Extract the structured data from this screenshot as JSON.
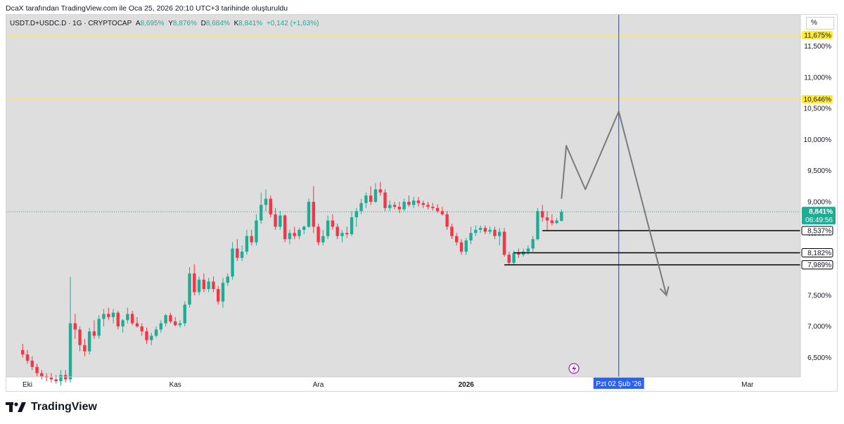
{
  "caption": "DcaX tarafından TradingView.com ile Oca 25, 2026 20:10 UTC+3 tarihinde oluşturuldu",
  "legend": {
    "symbol": "USDT.D+USDC.D · 1G · CRYPTOCAP",
    "o_label": "A",
    "o_value": "8,695%",
    "h_label": "Y",
    "h_value": "8,876%",
    "l_label": "D",
    "l_value": "8,684%",
    "c_label": "K",
    "c_value": "8,841%",
    "change": "+0,142 (+1,63%)"
  },
  "scale_mode": "%",
  "brand": "TradingView",
  "colors": {
    "up": "#22ab94",
    "down": "#f23645",
    "highlight": "#ffeb3b",
    "vline": "#2962ff",
    "price_badge": "#22ab94"
  },
  "chart_data": {
    "type": "candlestick",
    "ylim": [
      6.2,
      11.8
    ],
    "y_ticks": [
      "6,500%",
      "7,000%",
      "7,500%",
      "8,000%",
      "8,500%",
      "9,000%",
      "9,500%",
      "10,000%",
      "10,500%",
      "11,000%",
      "11,500%"
    ],
    "y_tick_values": [
      6.5,
      7.0,
      7.5,
      8.0,
      8.5,
      9.0,
      9.5,
      10.0,
      10.5,
      11.0,
      11.5
    ],
    "x_labels": [
      {
        "label": "Eki",
        "date": "2025-10-01"
      },
      {
        "label": "Kas",
        "date": "2025-11-01"
      },
      {
        "label": "Ara",
        "date": "2025-12-01"
      },
      {
        "label": "2026",
        "date": "2026-01-01"
      },
      {
        "label": "Mar",
        "date": "2026-03-01"
      }
    ],
    "candles": [
      {
        "d": "2025-09-30",
        "o": 6.62,
        "h": 6.72,
        "l": 6.5,
        "c": 6.55
      },
      {
        "d": "2025-10-01",
        "o": 6.55,
        "h": 6.62,
        "l": 6.4,
        "c": 6.45
      },
      {
        "d": "2025-10-02",
        "o": 6.45,
        "h": 6.52,
        "l": 6.3,
        "c": 6.35
      },
      {
        "d": "2025-10-03",
        "o": 6.35,
        "h": 6.4,
        "l": 6.2,
        "c": 6.25
      },
      {
        "d": "2025-10-04",
        "o": 6.25,
        "h": 6.3,
        "l": 6.15,
        "c": 6.2
      },
      {
        "d": "2025-10-05",
        "o": 6.2,
        "h": 6.25,
        "l": 6.12,
        "c": 6.18
      },
      {
        "d": "2025-10-06",
        "o": 6.18,
        "h": 6.25,
        "l": 6.1,
        "c": 6.15
      },
      {
        "d": "2025-10-07",
        "o": 6.15,
        "h": 6.22,
        "l": 6.08,
        "c": 6.12
      },
      {
        "d": "2025-10-08",
        "o": 6.12,
        "h": 6.3,
        "l": 6.05,
        "c": 6.22
      },
      {
        "d": "2025-10-09",
        "o": 6.22,
        "h": 6.3,
        "l": 6.1,
        "c": 6.15
      },
      {
        "d": "2025-10-10",
        "o": 6.15,
        "h": 7.8,
        "l": 6.1,
        "c": 7.05
      },
      {
        "d": "2025-10-11",
        "o": 7.05,
        "h": 7.2,
        "l": 6.8,
        "c": 6.95
      },
      {
        "d": "2025-10-12",
        "o": 6.95,
        "h": 7.0,
        "l": 6.6,
        "c": 6.7
      },
      {
        "d": "2025-10-13",
        "o": 6.7,
        "h": 6.8,
        "l": 6.52,
        "c": 6.6
      },
      {
        "d": "2025-10-14",
        "o": 6.6,
        "h": 6.98,
        "l": 6.55,
        "c": 6.92
      },
      {
        "d": "2025-10-15",
        "o": 6.92,
        "h": 7.1,
        "l": 6.8,
        "c": 6.85
      },
      {
        "d": "2025-10-16",
        "o": 6.85,
        "h": 7.18,
        "l": 6.8,
        "c": 7.12
      },
      {
        "d": "2025-10-17",
        "o": 7.12,
        "h": 7.28,
        "l": 7.0,
        "c": 7.2
      },
      {
        "d": "2025-10-18",
        "o": 7.2,
        "h": 7.3,
        "l": 7.1,
        "c": 7.15
      },
      {
        "d": "2025-10-19",
        "o": 7.15,
        "h": 7.28,
        "l": 7.05,
        "c": 7.22
      },
      {
        "d": "2025-10-20",
        "o": 7.22,
        "h": 7.25,
        "l": 6.95,
        "c": 7.0
      },
      {
        "d": "2025-10-21",
        "o": 7.0,
        "h": 7.12,
        "l": 6.9,
        "c": 7.1
      },
      {
        "d": "2025-10-22",
        "o": 7.1,
        "h": 7.3,
        "l": 7.05,
        "c": 7.2
      },
      {
        "d": "2025-10-23",
        "o": 7.2,
        "h": 7.25,
        "l": 7.02,
        "c": 7.05
      },
      {
        "d": "2025-10-24",
        "o": 7.05,
        "h": 7.15,
        "l": 6.98,
        "c": 7.0
      },
      {
        "d": "2025-10-25",
        "o": 7.0,
        "h": 7.05,
        "l": 6.85,
        "c": 6.92
      },
      {
        "d": "2025-10-26",
        "o": 6.92,
        "h": 6.98,
        "l": 6.72,
        "c": 6.78
      },
      {
        "d": "2025-10-27",
        "o": 6.78,
        "h": 6.9,
        "l": 6.7,
        "c": 6.85
      },
      {
        "d": "2025-10-28",
        "o": 6.85,
        "h": 7.0,
        "l": 6.82,
        "c": 6.95
      },
      {
        "d": "2025-10-29",
        "o": 6.95,
        "h": 7.1,
        "l": 6.9,
        "c": 7.05
      },
      {
        "d": "2025-10-30",
        "o": 7.05,
        "h": 7.2,
        "l": 7.0,
        "c": 7.18
      },
      {
        "d": "2025-10-31",
        "o": 7.18,
        "h": 7.22,
        "l": 7.05,
        "c": 7.08
      },
      {
        "d": "2025-11-01",
        "o": 7.08,
        "h": 7.15,
        "l": 7.0,
        "c": 7.02
      },
      {
        "d": "2025-11-02",
        "o": 7.02,
        "h": 7.1,
        "l": 6.98,
        "c": 7.05
      },
      {
        "d": "2025-11-03",
        "o": 7.05,
        "h": 7.4,
        "l": 7.0,
        "c": 7.35
      },
      {
        "d": "2025-11-04",
        "o": 7.35,
        "h": 7.95,
        "l": 7.3,
        "c": 7.85
      },
      {
        "d": "2025-11-05",
        "o": 7.85,
        "h": 8.0,
        "l": 7.5,
        "c": 7.55
      },
      {
        "d": "2025-11-06",
        "o": 7.55,
        "h": 7.8,
        "l": 7.5,
        "c": 7.75
      },
      {
        "d": "2025-11-07",
        "o": 7.75,
        "h": 7.85,
        "l": 7.55,
        "c": 7.6
      },
      {
        "d": "2025-11-08",
        "o": 7.6,
        "h": 7.78,
        "l": 7.55,
        "c": 7.72
      },
      {
        "d": "2025-11-09",
        "o": 7.72,
        "h": 7.8,
        "l": 7.55,
        "c": 7.6
      },
      {
        "d": "2025-11-10",
        "o": 7.6,
        "h": 7.65,
        "l": 7.35,
        "c": 7.4
      },
      {
        "d": "2025-11-11",
        "o": 7.4,
        "h": 7.78,
        "l": 7.3,
        "c": 7.7
      },
      {
        "d": "2025-11-12",
        "o": 7.7,
        "h": 7.85,
        "l": 7.65,
        "c": 7.8
      },
      {
        "d": "2025-11-13",
        "o": 7.8,
        "h": 8.35,
        "l": 7.75,
        "c": 8.25
      },
      {
        "d": "2025-11-14",
        "o": 8.25,
        "h": 8.4,
        "l": 8.05,
        "c": 8.1
      },
      {
        "d": "2025-11-15",
        "o": 8.1,
        "h": 8.3,
        "l": 8.05,
        "c": 8.2
      },
      {
        "d": "2025-11-16",
        "o": 8.2,
        "h": 8.55,
        "l": 8.15,
        "c": 8.45
      },
      {
        "d": "2025-11-17",
        "o": 8.45,
        "h": 8.55,
        "l": 8.3,
        "c": 8.35
      },
      {
        "d": "2025-11-18",
        "o": 8.35,
        "h": 8.8,
        "l": 8.3,
        "c": 8.7
      },
      {
        "d": "2025-11-19",
        "o": 8.7,
        "h": 9.15,
        "l": 8.65,
        "c": 8.95
      },
      {
        "d": "2025-11-20",
        "o": 8.95,
        "h": 9.2,
        "l": 8.85,
        "c": 9.05
      },
      {
        "d": "2025-11-21",
        "o": 9.05,
        "h": 9.1,
        "l": 8.75,
        "c": 8.8
      },
      {
        "d": "2025-11-22",
        "o": 8.8,
        "h": 8.9,
        "l": 8.55,
        "c": 8.6
      },
      {
        "d": "2025-11-23",
        "o": 8.6,
        "h": 8.85,
        "l": 8.55,
        "c": 8.78
      },
      {
        "d": "2025-11-24",
        "o": 8.78,
        "h": 8.8,
        "l": 8.35,
        "c": 8.4
      },
      {
        "d": "2025-11-25",
        "o": 8.4,
        "h": 8.55,
        "l": 8.32,
        "c": 8.5
      },
      {
        "d": "2025-11-26",
        "o": 8.5,
        "h": 8.6,
        "l": 8.4,
        "c": 8.45
      },
      {
        "d": "2025-11-27",
        "o": 8.45,
        "h": 8.58,
        "l": 8.4,
        "c": 8.55
      },
      {
        "d": "2025-11-28",
        "o": 8.55,
        "h": 8.62,
        "l": 8.48,
        "c": 8.6
      },
      {
        "d": "2025-11-29",
        "o": 8.6,
        "h": 9.05,
        "l": 8.58,
        "c": 9.0
      },
      {
        "d": "2025-11-30",
        "o": 9.0,
        "h": 9.25,
        "l": 8.5,
        "c": 8.6
      },
      {
        "d": "2025-12-01",
        "o": 8.6,
        "h": 8.65,
        "l": 8.3,
        "c": 8.35
      },
      {
        "d": "2025-12-02",
        "o": 8.35,
        "h": 8.55,
        "l": 8.3,
        "c": 8.45
      },
      {
        "d": "2025-12-03",
        "o": 8.45,
        "h": 8.78,
        "l": 8.4,
        "c": 8.7
      },
      {
        "d": "2025-12-04",
        "o": 8.7,
        "h": 8.8,
        "l": 8.55,
        "c": 8.6
      },
      {
        "d": "2025-12-05",
        "o": 8.6,
        "h": 8.65,
        "l": 8.4,
        "c": 8.45
      },
      {
        "d": "2025-12-06",
        "o": 8.45,
        "h": 8.55,
        "l": 8.35,
        "c": 8.5
      },
      {
        "d": "2025-12-07",
        "o": 8.5,
        "h": 8.6,
        "l": 8.42,
        "c": 8.48
      },
      {
        "d": "2025-12-08",
        "o": 8.48,
        "h": 8.85,
        "l": 8.45,
        "c": 8.75
      },
      {
        "d": "2025-12-09",
        "o": 8.75,
        "h": 8.9,
        "l": 8.6,
        "c": 8.85
      },
      {
        "d": "2025-12-10",
        "o": 8.85,
        "h": 9.05,
        "l": 8.8,
        "c": 8.98
      },
      {
        "d": "2025-12-11",
        "o": 8.98,
        "h": 9.15,
        "l": 8.9,
        "c": 9.1
      },
      {
        "d": "2025-12-12",
        "o": 9.1,
        "h": 9.25,
        "l": 8.95,
        "c": 9.0
      },
      {
        "d": "2025-12-13",
        "o": 9.0,
        "h": 9.3,
        "l": 8.98,
        "c": 9.2
      },
      {
        "d": "2025-12-14",
        "o": 9.2,
        "h": 9.32,
        "l": 9.1,
        "c": 9.15
      },
      {
        "d": "2025-12-15",
        "o": 9.15,
        "h": 9.2,
        "l": 8.85,
        "c": 8.9
      },
      {
        "d": "2025-12-16",
        "o": 8.9,
        "h": 9.02,
        "l": 8.85,
        "c": 8.95
      },
      {
        "d": "2025-12-17",
        "o": 8.95,
        "h": 9.0,
        "l": 8.88,
        "c": 8.92
      },
      {
        "d": "2025-12-18",
        "o": 8.92,
        "h": 9.0,
        "l": 8.82,
        "c": 8.88
      },
      {
        "d": "2025-12-19",
        "o": 8.88,
        "h": 9.05,
        "l": 8.85,
        "c": 9.0
      },
      {
        "d": "2025-12-20",
        "o": 9.0,
        "h": 9.1,
        "l": 8.92,
        "c": 8.95
      },
      {
        "d": "2025-12-21",
        "o": 8.95,
        "h": 9.08,
        "l": 8.9,
        "c": 9.02
      },
      {
        "d": "2025-12-22",
        "o": 9.02,
        "h": 9.08,
        "l": 8.92,
        "c": 8.98
      },
      {
        "d": "2025-12-23",
        "o": 8.98,
        "h": 9.02,
        "l": 8.9,
        "c": 8.95
      },
      {
        "d": "2025-12-24",
        "o": 8.95,
        "h": 9.0,
        "l": 8.88,
        "c": 8.92
      },
      {
        "d": "2025-12-25",
        "o": 8.92,
        "h": 8.98,
        "l": 8.86,
        "c": 8.9
      },
      {
        "d": "2025-12-26",
        "o": 8.9,
        "h": 8.96,
        "l": 8.82,
        "c": 8.85
      },
      {
        "d": "2025-12-27",
        "o": 8.85,
        "h": 8.92,
        "l": 8.78,
        "c": 8.8
      },
      {
        "d": "2025-12-28",
        "o": 8.8,
        "h": 8.85,
        "l": 8.55,
        "c": 8.6
      },
      {
        "d": "2025-12-29",
        "o": 8.6,
        "h": 8.65,
        "l": 8.4,
        "c": 8.45
      },
      {
        "d": "2025-12-30",
        "o": 8.45,
        "h": 8.5,
        "l": 8.3,
        "c": 8.35
      },
      {
        "d": "2025-12-31",
        "o": 8.35,
        "h": 8.4,
        "l": 8.15,
        "c": 8.2
      },
      {
        "d": "2026-01-01",
        "o": 8.2,
        "h": 8.42,
        "l": 8.15,
        "c": 8.38
      },
      {
        "d": "2026-01-02",
        "o": 8.38,
        "h": 8.6,
        "l": 8.32,
        "c": 8.5
      },
      {
        "d": "2026-01-03",
        "o": 8.5,
        "h": 8.62,
        "l": 8.45,
        "c": 8.55
      },
      {
        "d": "2026-01-04",
        "o": 8.55,
        "h": 8.62,
        "l": 8.5,
        "c": 8.58
      },
      {
        "d": "2026-01-05",
        "o": 8.58,
        "h": 8.62,
        "l": 8.48,
        "c": 8.52
      },
      {
        "d": "2026-01-06",
        "o": 8.52,
        "h": 8.6,
        "l": 8.48,
        "c": 8.55
      },
      {
        "d": "2026-01-07",
        "o": 8.55,
        "h": 8.6,
        "l": 8.4,
        "c": 8.45
      },
      {
        "d": "2026-01-08",
        "o": 8.45,
        "h": 8.58,
        "l": 8.3,
        "c": 8.52
      },
      {
        "d": "2026-01-09",
        "o": 8.52,
        "h": 8.58,
        "l": 8.12,
        "c": 8.15
      },
      {
        "d": "2026-01-10",
        "o": 8.15,
        "h": 8.2,
        "l": 7.98,
        "c": 8.02
      },
      {
        "d": "2026-01-11",
        "o": 8.02,
        "h": 8.22,
        "l": 7.98,
        "c": 8.18
      },
      {
        "d": "2026-01-12",
        "o": 8.18,
        "h": 8.25,
        "l": 8.1,
        "c": 8.15
      },
      {
        "d": "2026-01-13",
        "o": 8.15,
        "h": 8.25,
        "l": 8.12,
        "c": 8.2
      },
      {
        "d": "2026-01-14",
        "o": 8.2,
        "h": 8.3,
        "l": 8.15,
        "c": 8.25
      },
      {
        "d": "2026-01-15",
        "o": 8.25,
        "h": 8.45,
        "l": 8.2,
        "c": 8.4
      },
      {
        "d": "2026-01-16",
        "o": 8.4,
        "h": 8.9,
        "l": 8.38,
        "c": 8.85
      },
      {
        "d": "2026-01-17",
        "o": 8.85,
        "h": 8.95,
        "l": 8.68,
        "c": 8.75
      },
      {
        "d": "2026-01-18",
        "o": 8.75,
        "h": 8.85,
        "l": 8.54,
        "c": 8.7
      },
      {
        "d": "2026-01-19",
        "o": 8.7,
        "h": 8.8,
        "l": 8.62,
        "c": 8.66
      },
      {
        "d": "2026-01-20",
        "o": 8.66,
        "h": 8.74,
        "l": 8.64,
        "c": 8.7
      },
      {
        "d": "2026-01-21",
        "o": 8.695,
        "h": 8.876,
        "l": 8.684,
        "c": 8.841
      }
    ],
    "horizontal_levels": [
      {
        "value": 11.675,
        "label": "11,675%",
        "style": "highlight"
      },
      {
        "value": 10.646,
        "label": "10,646%",
        "style": "highlight"
      },
      {
        "value": 8.537,
        "label": "8,537%",
        "style": "ray",
        "from": "2026-01-17"
      },
      {
        "value": 8.182,
        "label": "8,182%",
        "style": "ray",
        "from": "2026-01-11"
      },
      {
        "value": 7.989,
        "label": "7,989%",
        "style": "ray",
        "from": "2026-01-09"
      }
    ],
    "last_price": {
      "value": 8.841,
      "label": "8,841%",
      "countdown": "06:49:56"
    },
    "vertical_marker": {
      "date": "2026-02-02",
      "label": "Pzt 02 Şub '26"
    },
    "projection_path": [
      {
        "d": "2026-01-21",
        "v": 9.05
      },
      {
        "d": "2026-01-22",
        "v": 9.9
      },
      {
        "d": "2026-01-26",
        "v": 9.2
      },
      {
        "d": "2026-02-02",
        "v": 10.45
      },
      {
        "d": "2026-02-12",
        "v": 7.5
      }
    ]
  }
}
